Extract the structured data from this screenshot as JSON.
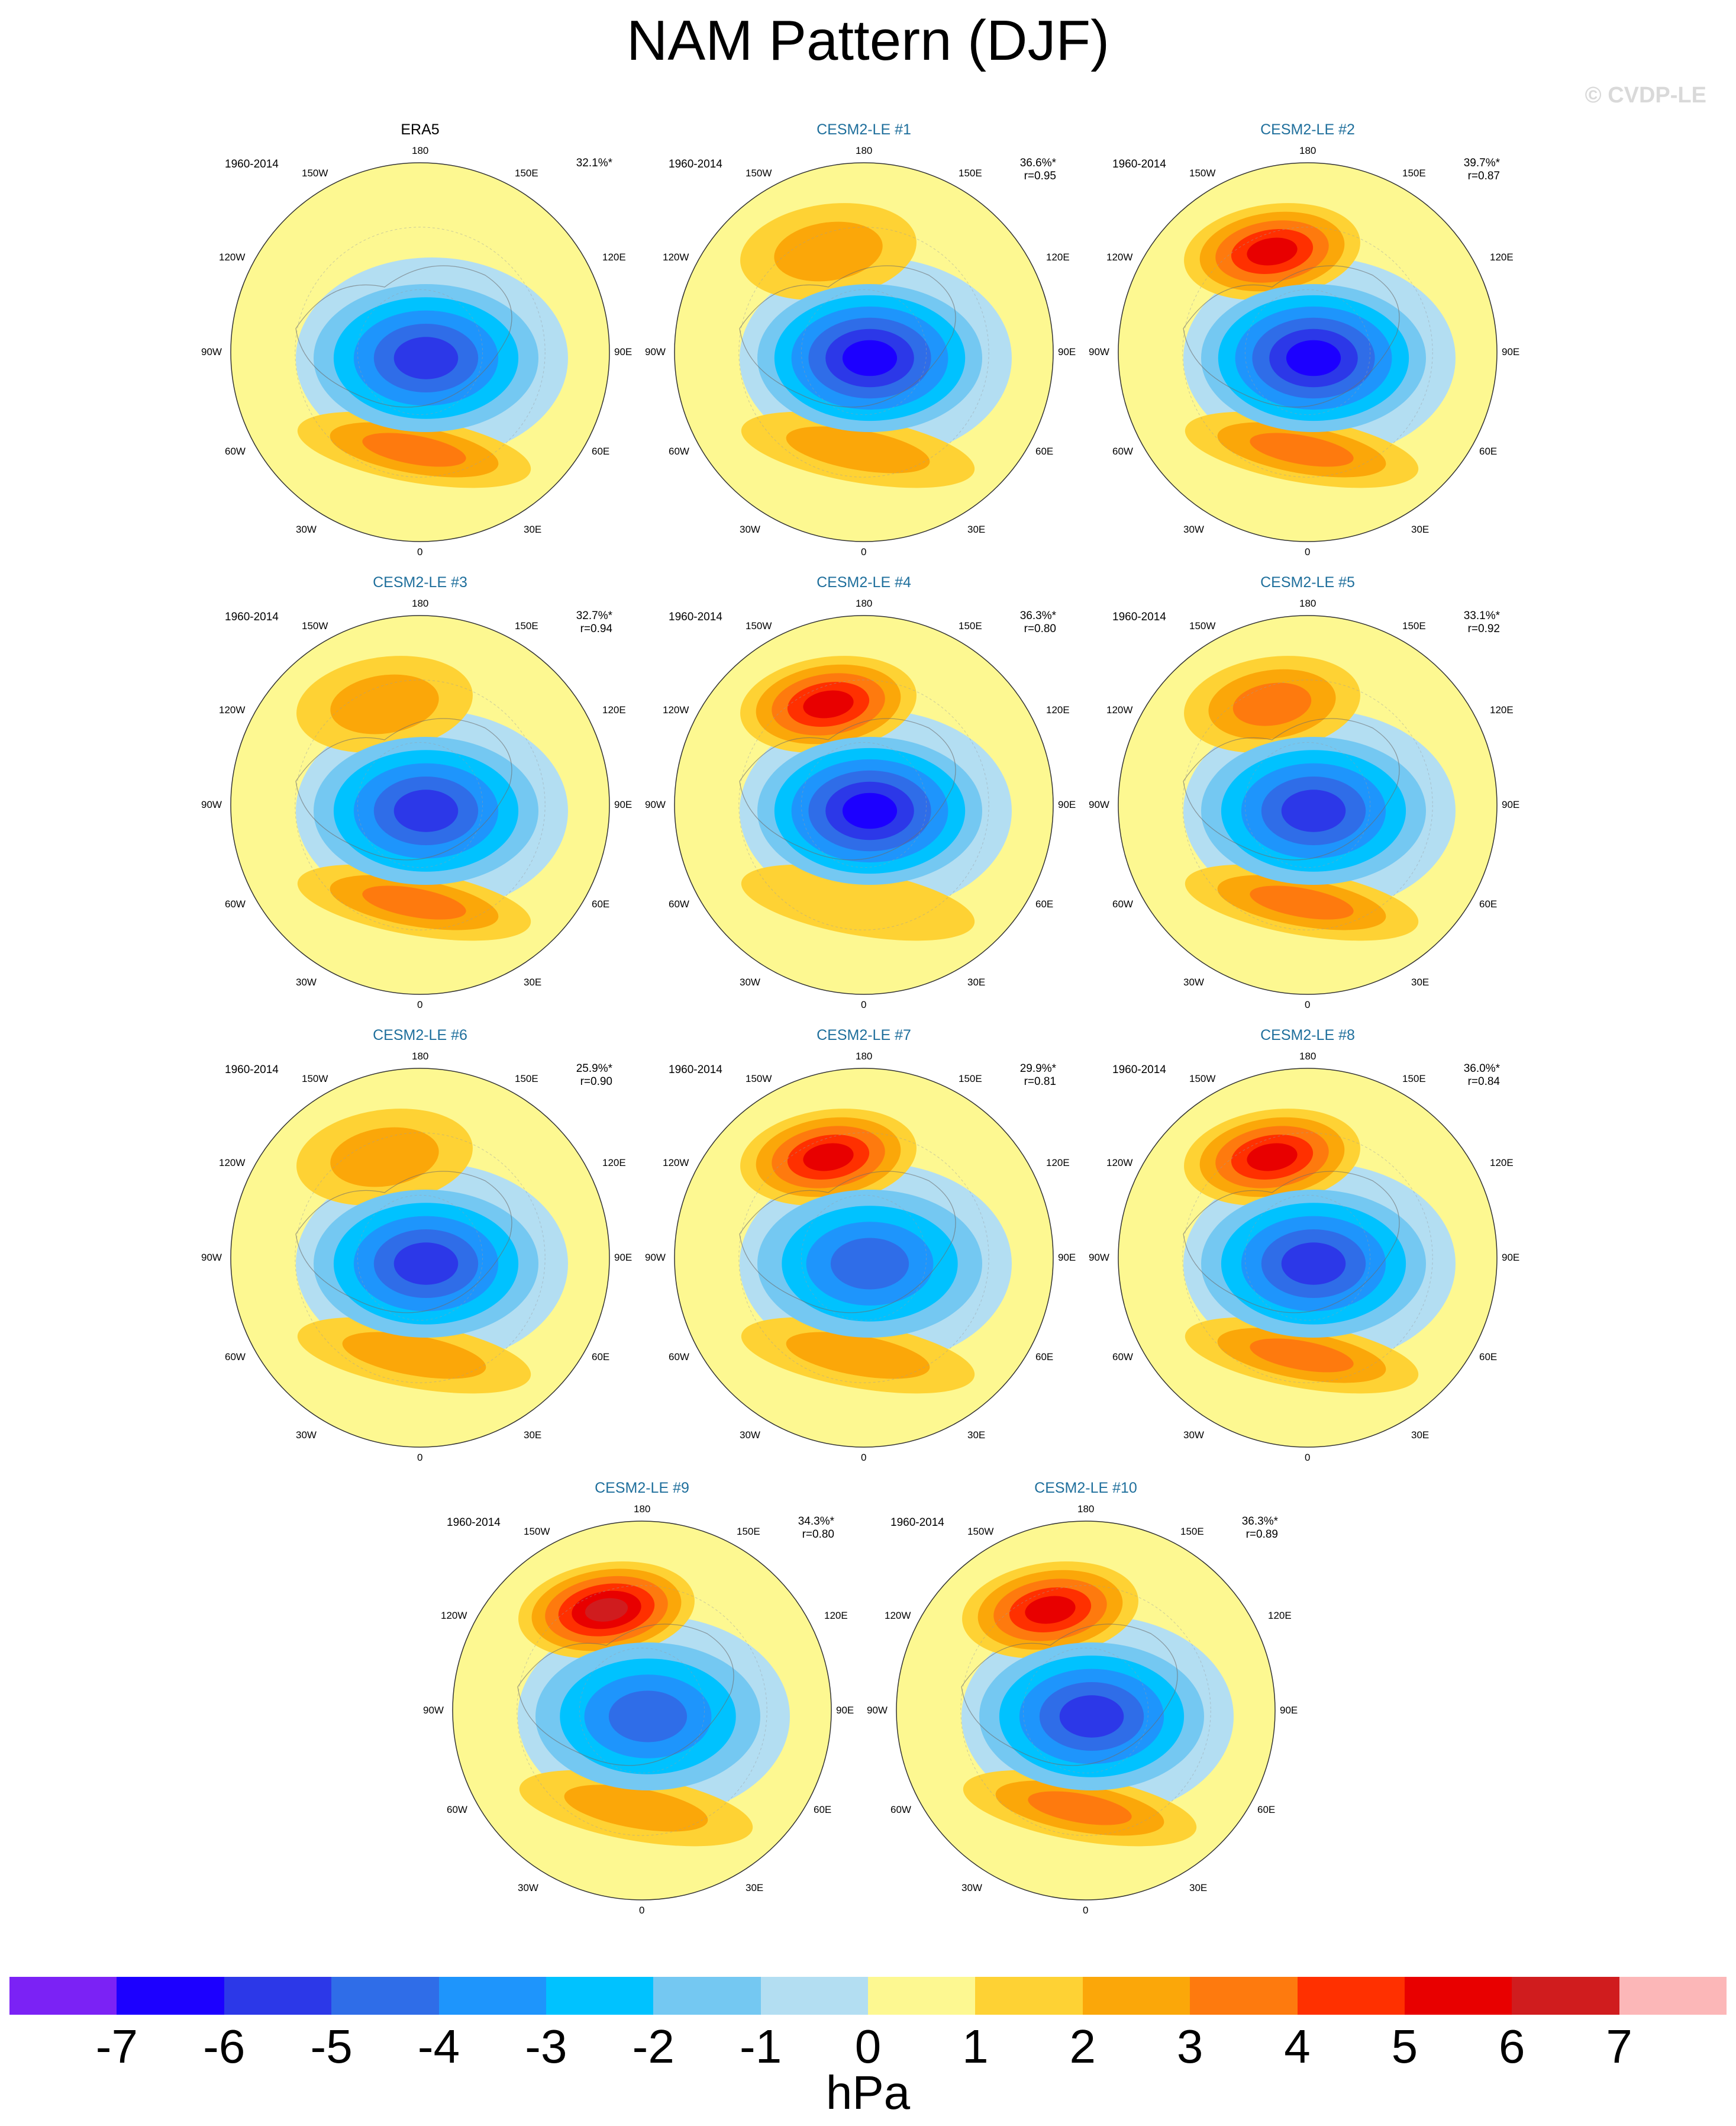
{
  "title": "NAM Pattern (DJF)",
  "watermark": "© CVDP-LE",
  "period": "1960-2014",
  "lon_labels": {
    "top": "180",
    "top_left": "150W",
    "top_right": "150E",
    "upper_left": "120W",
    "upper_right": "120E",
    "left": "90W",
    "right": "90E",
    "lower_left": "60W",
    "lower_right": "60E",
    "bottom_left": "30W",
    "bottom_right": "30E",
    "bottom": "0"
  },
  "panels": [
    {
      "title": "ERA5",
      "pct": "32.1%*",
      "r": "",
      "pac_strength": 0.5,
      "atl_strength": 3.2,
      "center_strength": -5.6
    },
    {
      "title": "CESM2-LE #1",
      "pct": "36.6%*",
      "r": "r=0.95",
      "pac_strength": 2.4,
      "atl_strength": 2.6,
      "center_strength": -6.2
    },
    {
      "title": "CESM2-LE #2",
      "pct": "39.7%*",
      "r": "r=0.87",
      "pac_strength": 5.2,
      "atl_strength": 3.1,
      "center_strength": -6.3
    },
    {
      "title": "CESM2-LE #3",
      "pct": "32.7%*",
      "r": "r=0.94",
      "pac_strength": 2.3,
      "atl_strength": 3.1,
      "center_strength": -5.4
    },
    {
      "title": "CESM2-LE #4",
      "pct": "36.3%*",
      "r": "r=0.80",
      "pac_strength": 5.1,
      "atl_strength": 1.8,
      "center_strength": -6.2
    },
    {
      "title": "CESM2-LE #5",
      "pct": "33.1%*",
      "r": "r=0.92",
      "pac_strength": 3.2,
      "atl_strength": 3.1,
      "center_strength": -5.3
    },
    {
      "title": "CESM2-LE #6",
      "pct": "25.9%*",
      "r": "r=0.90",
      "pac_strength": 2.4,
      "atl_strength": 2.7,
      "center_strength": -5.2
    },
    {
      "title": "CESM2-LE #7",
      "pct": "29.9%*",
      "r": "r=0.81",
      "pac_strength": 5.2,
      "atl_strength": 2.1,
      "center_strength": -4.4
    },
    {
      "title": "CESM2-LE #8",
      "pct": "36.0%*",
      "r": "r=0.84",
      "pac_strength": 5.3,
      "atl_strength": 3.3,
      "center_strength": -5.4
    },
    {
      "title": "CESM2-LE #9",
      "pct": "34.3%*",
      "r": "r=0.80",
      "pac_strength": 6.0,
      "atl_strength": 2.3,
      "center_strength": -4.5
    },
    {
      "title": "CESM2-LE #10",
      "pct": "36.3%*",
      "r": "r=0.89",
      "pac_strength": 5.2,
      "atl_strength": 3.1,
      "center_strength": -5.2
    }
  ],
  "colorbar": {
    "units": "hPa",
    "ticks": [
      "-7",
      "-6",
      "-5",
      "-4",
      "-3",
      "-2",
      "-1",
      "0",
      "1",
      "2",
      "3",
      "4",
      "5",
      "6",
      "7"
    ],
    "colors": [
      "#7b22f5",
      "#1c00ff",
      "#2c38e8",
      "#2f6de8",
      "#1e95fc",
      "#00c2ff",
      "#74c8f2",
      "#b3def2",
      "#fdf891",
      "#fed234",
      "#fba709",
      "#fe7a0e",
      "#ff3000",
      "#e80000",
      "#d01c1e",
      "#fcb7b8"
    ]
  }
}
